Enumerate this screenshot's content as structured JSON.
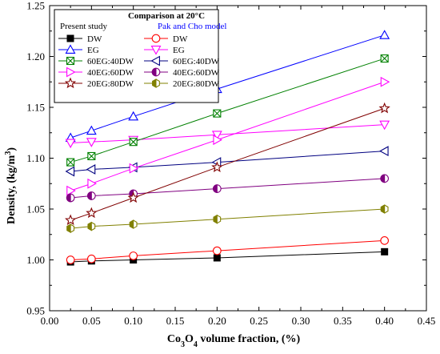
{
  "chart_data": {
    "type": "line",
    "ylabel": "Density, (kg/m3)",
    "xlabel": "Co3O4 volume fraction, (%)",
    "xlim": [
      0.0,
      0.45
    ],
    "ylim": [
      0.95,
      1.25
    ],
    "xticks": [
      "0.00",
      "0.05",
      "0.10",
      "0.15",
      "0.20",
      "0.25",
      "0.30",
      "0.35",
      "0.40",
      "0.45"
    ],
    "yticks": [
      "0.95",
      "1.00",
      "1.05",
      "1.10",
      "1.15",
      "1.20",
      "1.25"
    ],
    "legend": {
      "title": "Comparison at 20°C",
      "left_heading": "Present study",
      "right_heading": "Pak and Cho model",
      "placement": "top-left"
    },
    "colors": {
      "black": "#000000",
      "red": "#ff0000",
      "blue": "#0000ff",
      "green": "#008000",
      "magenta": "#ff00ff",
      "navy": "#000080",
      "purple": "#800080",
      "maroon": "#800000",
      "olive": "#808000"
    },
    "series": [
      {
        "name": "DW",
        "group": "present",
        "marker": "square-filled",
        "color": "#000000",
        "x": [
          0.025,
          0.05,
          0.1,
          0.2,
          0.4
        ],
        "y": [
          0.998,
          0.999,
          1.0,
          1.002,
          1.008
        ]
      },
      {
        "name": "DW",
        "group": "pak",
        "marker": "circle-open",
        "color": "#ff0000",
        "x": [
          0.025,
          0.05,
          0.1,
          0.2,
          0.4
        ],
        "y": [
          1.0,
          1.001,
          1.004,
          1.009,
          1.019
        ]
      },
      {
        "name": "EG",
        "group": "present",
        "marker": "triangle-up-open",
        "color": "#0000ff",
        "x": [
          0.025,
          0.05,
          0.1,
          0.2,
          0.4
        ],
        "y": [
          1.12,
          1.127,
          1.141,
          1.168,
          1.221
        ]
      },
      {
        "name": "EG",
        "group": "pak",
        "marker": "triangle-down-open",
        "color": "#ff00ff",
        "x": [
          0.025,
          0.05,
          0.1,
          0.2,
          0.4
        ],
        "y": [
          1.115,
          1.116,
          1.118,
          1.123,
          1.133
        ]
      },
      {
        "name": "60EG:40DW",
        "group": "present",
        "marker": "x-square",
        "color": "#008000",
        "x": [
          0.025,
          0.05,
          0.1,
          0.2,
          0.4
        ],
        "y": [
          1.096,
          1.102,
          1.116,
          1.144,
          1.198
        ]
      },
      {
        "name": "60EG:40DW",
        "group": "pak",
        "marker": "triangle-left-open",
        "color": "#000080",
        "x": [
          0.025,
          0.05,
          0.1,
          0.2,
          0.4
        ],
        "y": [
          1.087,
          1.089,
          1.091,
          1.096,
          1.107
        ]
      },
      {
        "name": "40EG:60DW",
        "group": "present",
        "marker": "triangle-right-open",
        "color": "#ff00ff",
        "x": [
          0.025,
          0.05,
          0.1,
          0.2,
          0.4
        ],
        "y": [
          1.068,
          1.075,
          1.09,
          1.118,
          1.175
        ]
      },
      {
        "name": "40EG:60DW",
        "group": "pak",
        "marker": "circle-half",
        "color": "#800080",
        "x": [
          0.025,
          0.05,
          0.1,
          0.2,
          0.4
        ],
        "y": [
          1.061,
          1.063,
          1.065,
          1.07,
          1.08
        ]
      },
      {
        "name": "20EG:80DW",
        "group": "present",
        "marker": "star-open",
        "color": "#800000",
        "x": [
          0.025,
          0.05,
          0.1,
          0.2,
          0.4
        ],
        "y": [
          1.039,
          1.046,
          1.061,
          1.091,
          1.149
        ]
      },
      {
        "name": "20EG:80DW",
        "group": "pak",
        "marker": "hexagon-half",
        "color": "#808000",
        "x": [
          0.025,
          0.05,
          0.1,
          0.2,
          0.4
        ],
        "y": [
          1.031,
          1.033,
          1.035,
          1.04,
          1.05
        ]
      }
    ]
  }
}
